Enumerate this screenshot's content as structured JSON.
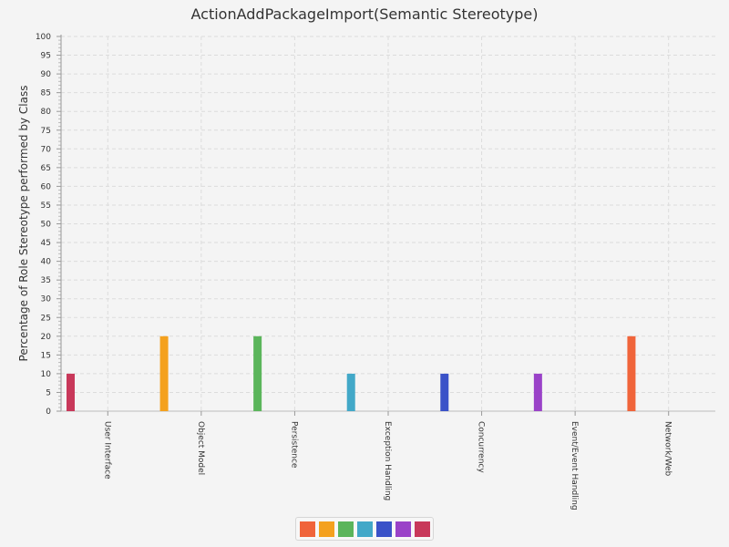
{
  "chart_data": {
    "type": "bar",
    "title": "ActionAddPackageImport(Semantic Stereotype)",
    "xlabel": "",
    "ylabel": "Percentage of Role Stereotype performed by Class",
    "ylim": [
      0,
      100
    ],
    "ytick_step": 5,
    "categories": [
      "User Interface",
      "Object Model",
      "Persistence",
      "Exception Handling",
      "Concurrency",
      "Event/Event Handling",
      "Network/Web"
    ],
    "values": [
      10,
      20,
      20,
      10,
      10,
      10,
      20
    ],
    "bar_colors": [
      "#c8385a",
      "#f4a11e",
      "#5bb55b",
      "#42a8c8",
      "#3a52c8",
      "#9a42c8",
      "#f0643a"
    ],
    "grid": true,
    "legend_placement": "bottom-center",
    "legend_colors": [
      "#f0643a",
      "#f4a11e",
      "#5bb55b",
      "#42a8c8",
      "#3a52c8",
      "#9a42c8",
      "#c8385a"
    ]
  }
}
